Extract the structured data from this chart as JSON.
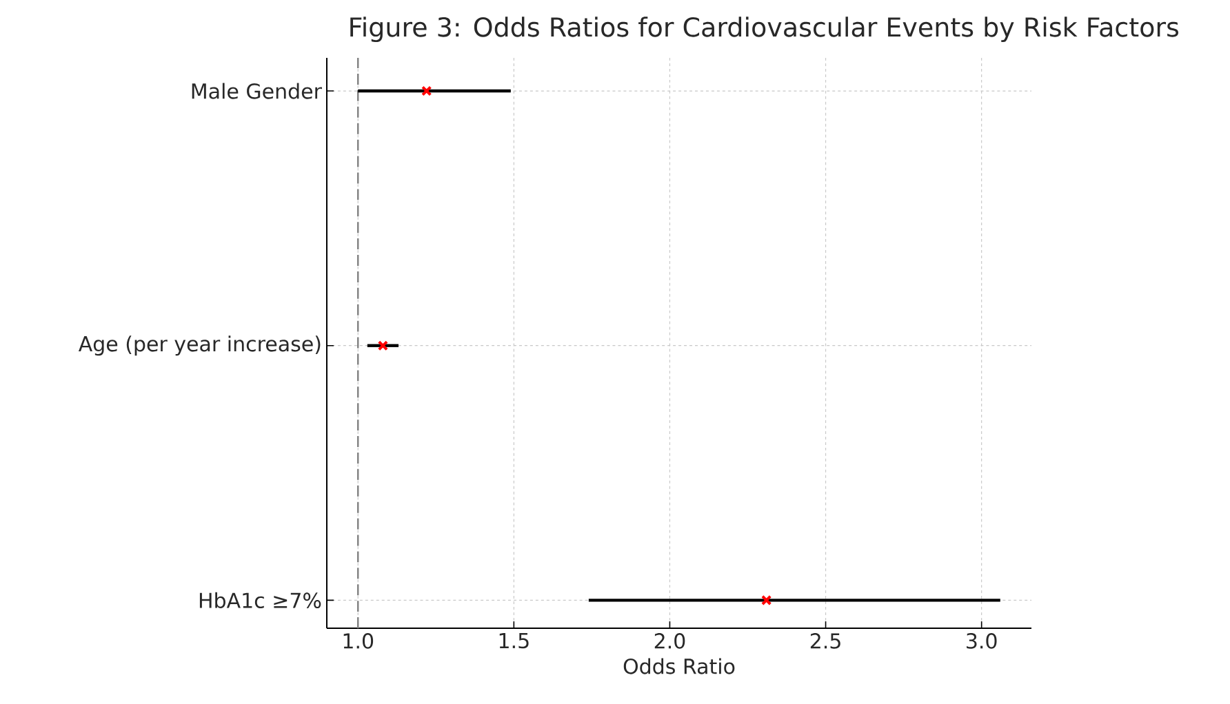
{
  "chart_data": {
    "type": "scatter",
    "orientation": "horizontal",
    "title": "Figure 3: Odds Ratios for Cardiovascular Events by Risk Factors",
    "xlabel": "Odds Ratio",
    "categories": [
      "Male Gender",
      "Age (per year increase)",
      "HbA1c ≥7%"
    ],
    "values": [
      1.22,
      1.08,
      2.31
    ],
    "errors": [
      [
        1.0,
        1.49
      ],
      [
        1.03,
        1.13
      ],
      [
        1.74,
        3.06
      ]
    ],
    "color": "#ff0000",
    "marker": "cross",
    "xlim": [
      0.9,
      3.16
    ],
    "xticks": [
      {
        "value": 1,
        "label": "1.0"
      },
      1.5,
      {
        "value": 2,
        "label": "2.0"
      },
      2.5,
      {
        "value": 3,
        "label": "3.0"
      }
    ],
    "ref_lines": [
      {
        "axis": "x",
        "value": 1.0,
        "color": "#808080",
        "line_style": "dashed"
      }
    ],
    "grid": true
  }
}
